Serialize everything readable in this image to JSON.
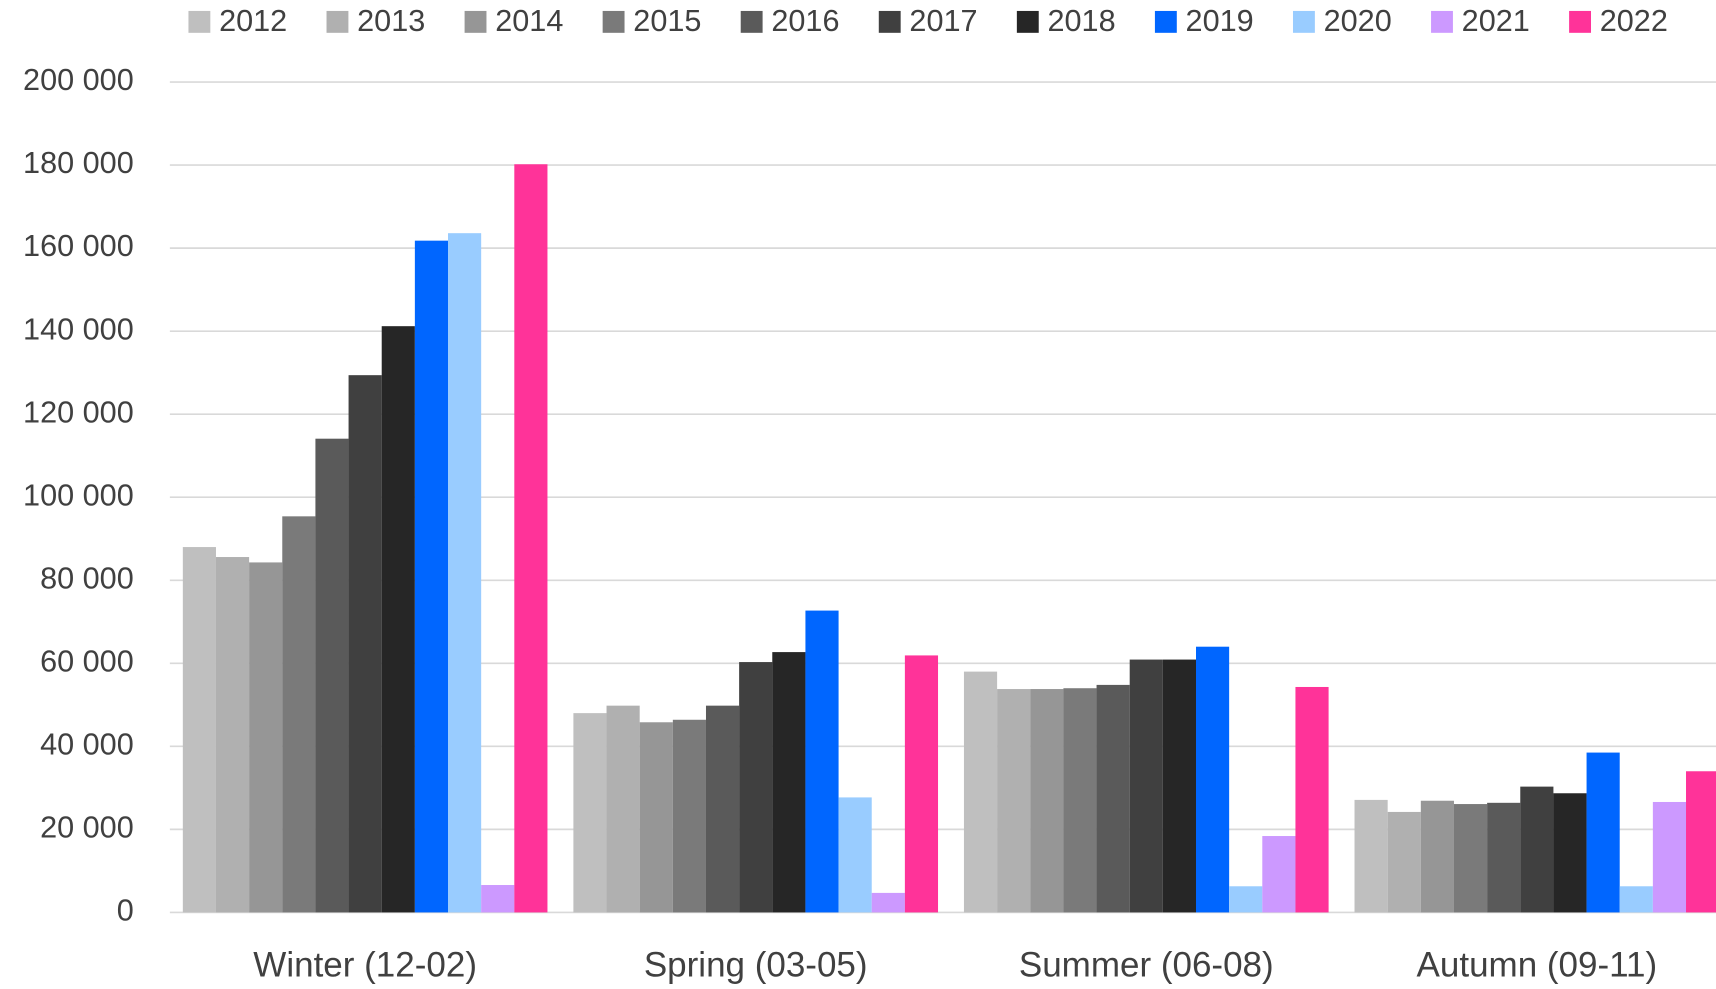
{
  "chart_data": {
    "type": "bar",
    "categories": [
      "Winter (12-02)",
      "Spring (03-05)",
      "Summer (06-08)",
      "Autumn (09-11)"
    ],
    "series": [
      {
        "name": "2012",
        "color": "#bfbfbf",
        "values": [
          88000,
          48000,
          58000,
          27100
        ]
      },
      {
        "name": "2013",
        "color": "#b0b0b0",
        "values": [
          85600,
          49800,
          53800,
          24200
        ]
      },
      {
        "name": "2014",
        "color": "#969696",
        "values": [
          84300,
          45800,
          53800,
          26900
        ]
      },
      {
        "name": "2015",
        "color": "#7a7a7a",
        "values": [
          95400,
          46400,
          54000,
          26100
        ]
      },
      {
        "name": "2016",
        "color": "#5a5a5a",
        "values": [
          114100,
          49800,
          54800,
          26400
        ]
      },
      {
        "name": "2017",
        "color": "#404040",
        "values": [
          129400,
          60300,
          60900,
          30300
        ]
      },
      {
        "name": "2018",
        "color": "#262626",
        "values": [
          141200,
          62700,
          60900,
          28700
        ]
      },
      {
        "name": "2019",
        "color": "#0066ff",
        "values": [
          161800,
          72700,
          64000,
          38500
        ]
      },
      {
        "name": "2020",
        "color": "#99ccff",
        "values": [
          163600,
          27700,
          6300,
          6300
        ]
      },
      {
        "name": "2021",
        "color": "#cc99ff",
        "values": [
          6600,
          4700,
          18400,
          26600
        ]
      },
      {
        "name": "2022",
        "color": "#ff3399",
        "values": [
          180200,
          61900,
          54300,
          34000
        ]
      }
    ],
    "ylim": [
      0,
      200000
    ],
    "yticks": [
      0,
      {
        "value": 20000,
        "label": "20 000"
      },
      {
        "value": 40000,
        "label": "40 000"
      },
      {
        "value": 60000,
        "label": "60 000"
      },
      {
        "value": 80000,
        "label": "80 000"
      },
      {
        "value": 100000,
        "label": "100 000"
      },
      {
        "value": 120000,
        "label": "120 000"
      },
      {
        "value": 140000,
        "label": "140 000"
      },
      {
        "value": 160000,
        "label": "160 000"
      },
      {
        "value": 180000,
        "label": "180 000"
      },
      {
        "value": 200000,
        "label": "200 000"
      }
    ],
    "grid": true,
    "legend": "top"
  }
}
